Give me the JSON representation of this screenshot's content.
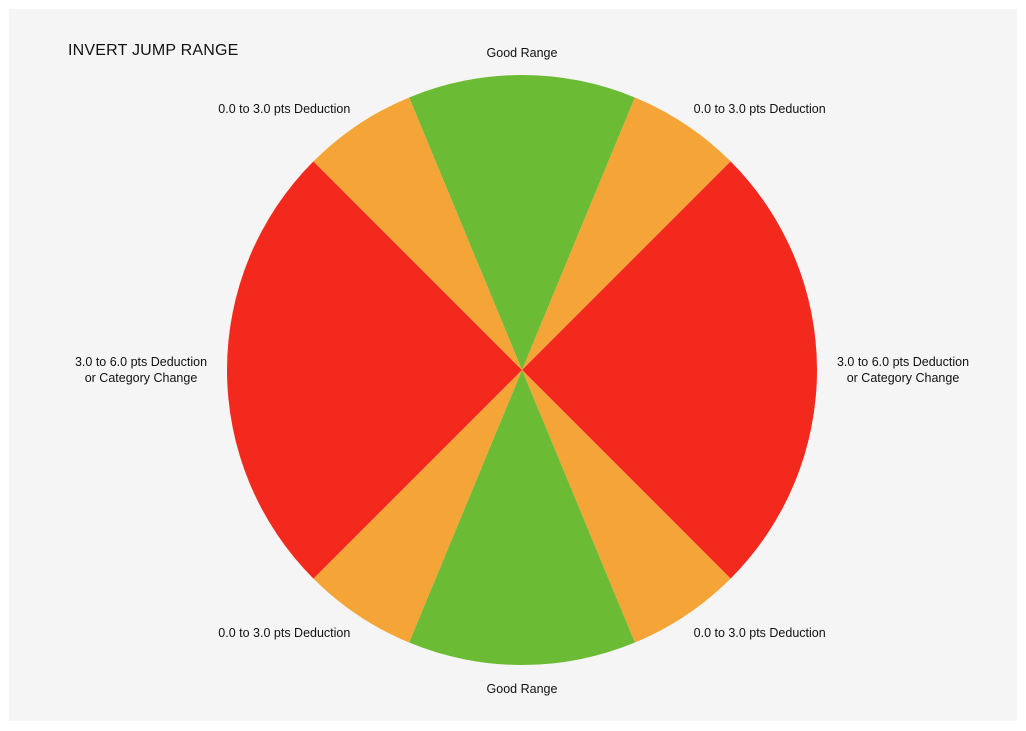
{
  "chart_data": {
    "type": "pie",
    "title": "INVERT JUMP RANGE",
    "slices": [
      {
        "label": "Good Range",
        "lines": [
          "Good Range"
        ],
        "value": 45,
        "color": "#6cbb34"
      },
      {
        "label": "0.0 to 3.0 pts Deduction",
        "lines": [
          "0.0 to 3.0 pts Deduction"
        ],
        "value": 22.5,
        "color": "#f5a437"
      },
      {
        "label": "3.0 to 6.0 pts Deduction or Category Change",
        "lines": [
          "3.0 to 6.0 pts Deduction",
          "or Category Change"
        ],
        "value": 90,
        "color": "#f4291e"
      },
      {
        "label": "0.0 to 3.0 pts Deduction",
        "lines": [
          "0.0 to 3.0 pts Deduction"
        ],
        "value": 22.5,
        "color": "#f5a437"
      },
      {
        "label": "Good Range",
        "lines": [
          "Good Range"
        ],
        "value": 45,
        "color": "#6cbb34"
      },
      {
        "label": "0.0 to 3.0 pts Deduction",
        "lines": [
          "0.0 to 3.0 pts Deduction"
        ],
        "value": 22.5,
        "color": "#f5a437"
      },
      {
        "label": "3.0 to 6.0 pts Deduction or Category Change",
        "lines": [
          "3.0 to 6.0 pts Deduction",
          "or Category Change"
        ],
        "value": 90,
        "color": "#f4291e"
      },
      {
        "label": "0.0 to 3.0 pts Deduction",
        "lines": [
          "0.0 to 3.0 pts Deduction"
        ],
        "value": 22.5,
        "color": "#f5a437"
      }
    ],
    "start_angle_deg": 0,
    "direction": "clockwise",
    "legend": "none"
  }
}
